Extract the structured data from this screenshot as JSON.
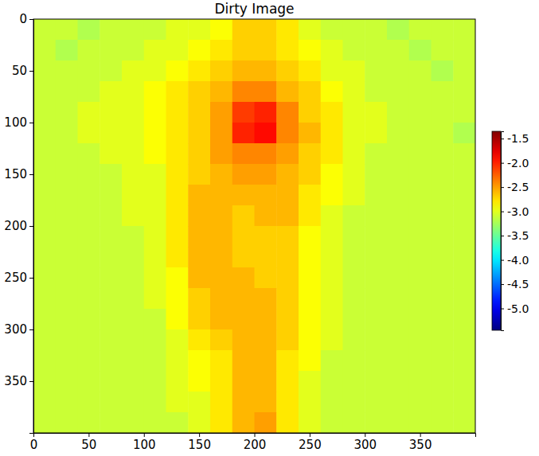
{
  "chart_data": {
    "type": "heatmap",
    "title": "Dirty Image",
    "xlim": [
      0,
      400
    ],
    "ylim": [
      400,
      0
    ],
    "xticks": [
      0,
      50,
      100,
      150,
      200,
      250,
      300,
      350
    ],
    "yticks": [
      0,
      50,
      100,
      150,
      200,
      250,
      300,
      350
    ],
    "x_edges": [
      0,
      20,
      40,
      60,
      80,
      100,
      120,
      140,
      160,
      180,
      200,
      220,
      240,
      260,
      280,
      300,
      320,
      340,
      360,
      380,
      400
    ],
    "y_edges": [
      0,
      20,
      40,
      60,
      80,
      100,
      120,
      140,
      160,
      180,
      200,
      220,
      240,
      260,
      280,
      300,
      320,
      340,
      360,
      380,
      400
    ],
    "cells": [
      [
        -3.1,
        -3.1,
        -3.2,
        -3.1,
        -3.1,
        -3.1,
        -3.0,
        -3.0,
        -2.9,
        -2.7,
        -2.7,
        -2.8,
        -3.0,
        -3.1,
        -3.1,
        -3.1,
        -3.2,
        -3.1,
        -3.1,
        -3.1
      ],
      [
        -3.1,
        -3.2,
        -3.1,
        -3.1,
        -3.1,
        -3.0,
        -3.0,
        -2.9,
        -2.8,
        -2.7,
        -2.7,
        -2.8,
        -2.9,
        -3.0,
        -3.1,
        -3.1,
        -3.1,
        -3.2,
        -3.1,
        -3.1
      ],
      [
        -3.1,
        -3.1,
        -3.1,
        -3.1,
        -3.0,
        -3.0,
        -2.9,
        -2.8,
        -2.7,
        -2.6,
        -2.6,
        -2.7,
        -2.8,
        -3.0,
        -3.0,
        -3.1,
        -3.1,
        -3.1,
        -3.2,
        -3.1
      ],
      [
        -3.1,
        -3.1,
        -3.1,
        -3.0,
        -3.0,
        -2.9,
        -2.8,
        -2.7,
        -2.6,
        -2.4,
        -2.4,
        -2.6,
        -2.7,
        -2.9,
        -3.0,
        -3.1,
        -3.1,
        -3.1,
        -3.1,
        -3.1
      ],
      [
        -3.1,
        -3.1,
        -3.0,
        -3.0,
        -3.0,
        -2.9,
        -2.8,
        -2.7,
        -2.5,
        -2.1,
        -2.0,
        -2.4,
        -2.7,
        -2.8,
        -3.0,
        -3.0,
        -3.1,
        -3.1,
        -3.1,
        -3.1
      ],
      [
        -3.1,
        -3.1,
        -3.0,
        -3.0,
        -3.0,
        -2.9,
        -2.8,
        -2.7,
        -2.5,
        -2.0,
        -1.9,
        -2.4,
        -2.6,
        -2.8,
        -3.0,
        -3.0,
        -3.1,
        -3.1,
        -3.1,
        -3.2
      ],
      [
        -3.1,
        -3.1,
        -3.1,
        -3.0,
        -3.0,
        -2.9,
        -2.8,
        -2.7,
        -2.5,
        -2.4,
        -2.4,
        -2.5,
        -2.7,
        -2.8,
        -3.0,
        -3.1,
        -3.1,
        -3.1,
        -3.1,
        -3.1
      ],
      [
        -3.1,
        -3.1,
        -3.1,
        -3.1,
        -3.0,
        -3.0,
        -2.8,
        -2.7,
        -2.6,
        -2.5,
        -2.5,
        -2.6,
        -2.7,
        -2.9,
        -3.0,
        -3.1,
        -3.1,
        -3.1,
        -3.1,
        -3.1
      ],
      [
        -3.1,
        -3.1,
        -3.1,
        -3.1,
        -3.0,
        -3.0,
        -2.8,
        -2.6,
        -2.6,
        -2.6,
        -2.6,
        -2.6,
        -2.8,
        -2.9,
        -3.0,
        -3.1,
        -3.1,
        -3.1,
        -3.1,
        -3.1
      ],
      [
        -3.1,
        -3.1,
        -3.1,
        -3.1,
        -3.0,
        -3.0,
        -2.8,
        -2.6,
        -2.6,
        -2.7,
        -2.6,
        -2.6,
        -2.8,
        -3.0,
        -3.1,
        -3.1,
        -3.1,
        -3.1,
        -3.1,
        -3.1
      ],
      [
        -3.1,
        -3.1,
        -3.1,
        -3.1,
        -3.1,
        -3.0,
        -2.8,
        -2.6,
        -2.6,
        -2.7,
        -2.7,
        -2.7,
        -2.9,
        -3.0,
        -3.1,
        -3.1,
        -3.1,
        -3.1,
        -3.1,
        -3.1
      ],
      [
        -3.1,
        -3.1,
        -3.1,
        -3.1,
        -3.1,
        -3.0,
        -2.8,
        -2.6,
        -2.6,
        -2.7,
        -2.7,
        -2.7,
        -2.9,
        -3.0,
        -3.1,
        -3.1,
        -3.1,
        -3.1,
        -3.1,
        -3.1
      ],
      [
        -3.1,
        -3.1,
        -3.1,
        -3.1,
        -3.1,
        -3.0,
        -2.9,
        -2.6,
        -2.6,
        -2.6,
        -2.7,
        -2.7,
        -2.9,
        -3.0,
        -3.1,
        -3.1,
        -3.1,
        -3.1,
        -3.1,
        -3.1
      ],
      [
        -3.1,
        -3.1,
        -3.1,
        -3.1,
        -3.1,
        -3.0,
        -2.9,
        -2.7,
        -2.6,
        -2.6,
        -2.6,
        -2.7,
        -2.9,
        -3.0,
        -3.1,
        -3.1,
        -3.1,
        -3.1,
        -3.1,
        -3.1
      ],
      [
        -3.1,
        -3.1,
        -3.1,
        -3.1,
        -3.1,
        -3.1,
        -2.9,
        -2.7,
        -2.6,
        -2.6,
        -2.6,
        -2.7,
        -2.9,
        -3.0,
        -3.1,
        -3.1,
        -3.1,
        -3.1,
        -3.1,
        -3.1
      ],
      [
        -3.1,
        -3.1,
        -3.1,
        -3.1,
        -3.1,
        -3.1,
        -3.0,
        -2.8,
        -2.7,
        -2.6,
        -2.6,
        -2.7,
        -2.9,
        -3.0,
        -3.1,
        -3.1,
        -3.1,
        -3.1,
        -3.1,
        -3.1
      ],
      [
        -3.1,
        -3.1,
        -3.1,
        -3.1,
        -3.1,
        -3.1,
        -3.0,
        -2.9,
        -2.8,
        -2.6,
        -2.6,
        -2.8,
        -2.9,
        -3.1,
        -3.1,
        -3.1,
        -3.1,
        -3.1,
        -3.1,
        -3.1
      ],
      [
        -3.1,
        -3.1,
        -3.1,
        -3.1,
        -3.1,
        -3.1,
        -3.0,
        -2.9,
        -2.8,
        -2.6,
        -2.6,
        -2.8,
        -3.0,
        -3.1,
        -3.1,
        -3.1,
        -3.1,
        -3.1,
        -3.1,
        -3.1
      ],
      [
        -3.1,
        -3.1,
        -3.1,
        -3.1,
        -3.1,
        -3.1,
        -3.0,
        -3.0,
        -2.8,
        -2.6,
        -2.6,
        -2.8,
        -3.0,
        -3.1,
        -3.1,
        -3.1,
        -3.1,
        -3.1,
        -3.1,
        -3.1
      ],
      [
        -3.1,
        -3.1,
        -3.1,
        -3.1,
        -3.1,
        -3.1,
        -3.1,
        -3.0,
        -2.8,
        -2.6,
        -2.5,
        -2.8,
        -3.0,
        -3.1,
        -3.1,
        -3.1,
        -3.1,
        -3.1,
        -3.1,
        -3.1
      ]
    ],
    "colorbar": {
      "range": [
        -5.45,
        -1.35
      ],
      "ticks": [
        -1.5,
        {
          "value": -2,
          "label": "-2.0"
        },
        -2.5,
        {
          "value": -3,
          "label": "-3.0"
        },
        -3.5,
        {
          "value": -4,
          "label": "-4.0"
        },
        -4.5,
        {
          "value": -5,
          "label": "-5.0"
        }
      ]
    }
  }
}
